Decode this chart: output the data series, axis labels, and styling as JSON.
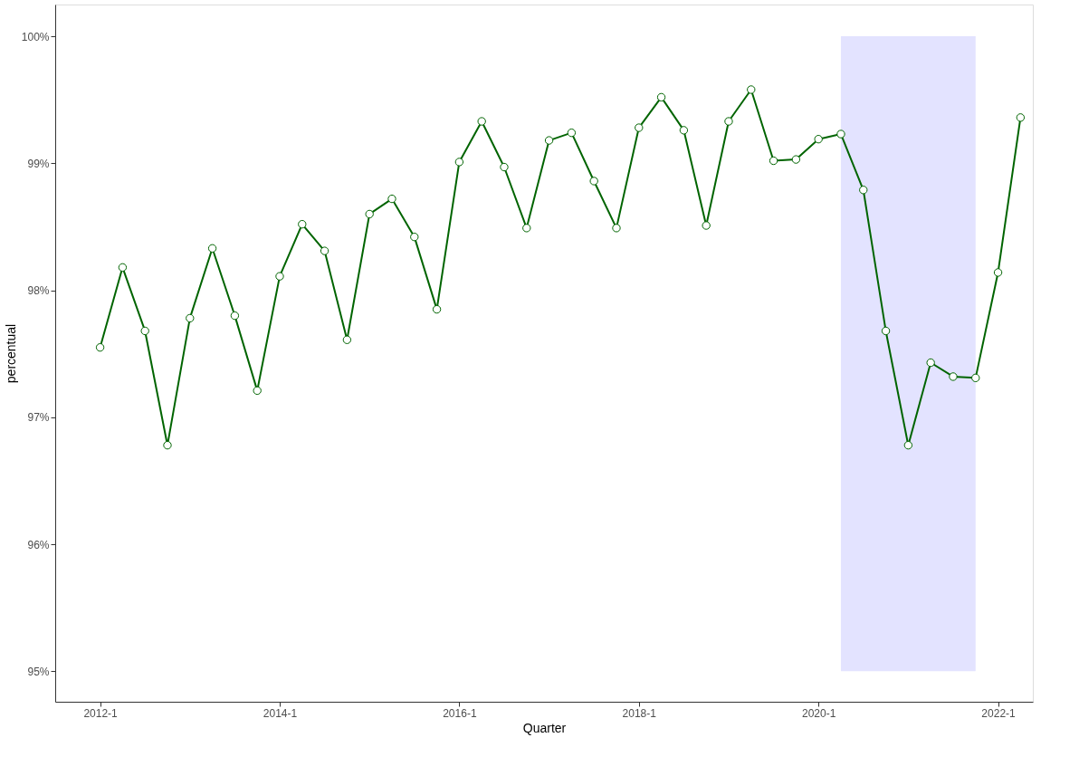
{
  "chart_data": {
    "type": "line",
    "xlabel": "Quarter",
    "ylabel": "percentual",
    "categories": [
      "2012-1",
      null,
      null,
      null,
      null,
      null,
      null,
      null,
      "2014-1",
      null,
      null,
      null,
      null,
      null,
      null,
      null,
      "2016-1",
      null,
      null,
      null,
      null,
      null,
      null,
      null,
      "2018-1",
      null,
      null,
      null,
      null,
      null,
      null,
      null,
      "2020-1",
      null,
      null,
      null,
      null,
      null,
      null,
      null,
      "2022-1",
      null
    ],
    "series": [
      {
        "color": "#006400",
        "values": [
          97.55,
          98.18,
          97.68,
          96.78,
          97.78,
          98.33,
          97.8,
          97.21,
          98.11,
          98.52,
          98.31,
          97.61,
          98.6,
          98.72,
          98.42,
          97.85,
          99.01,
          99.33,
          98.97,
          98.49,
          99.18,
          99.24,
          98.86,
          98.49,
          99.28,
          99.52,
          99.26,
          98.51,
          99.33,
          99.58,
          99.02,
          99.03,
          99.19,
          99.23,
          98.79,
          97.68,
          96.78,
          97.43,
          97.32,
          97.31,
          98.14,
          99.36
        ]
      }
    ],
    "ylim": [
      94.76,
      100.25
    ],
    "yticks": [
      {
        "value": 95,
        "label": "95%"
      },
      {
        "value": 96,
        "label": "96%"
      },
      {
        "value": 97,
        "label": "97%"
      },
      {
        "value": 98,
        "label": "98%"
      },
      {
        "value": 99,
        "label": "99%"
      },
      {
        "value": 100,
        "label": "100%"
      }
    ],
    "marker": "circle",
    "line_style": "solid",
    "grid": false
  }
}
